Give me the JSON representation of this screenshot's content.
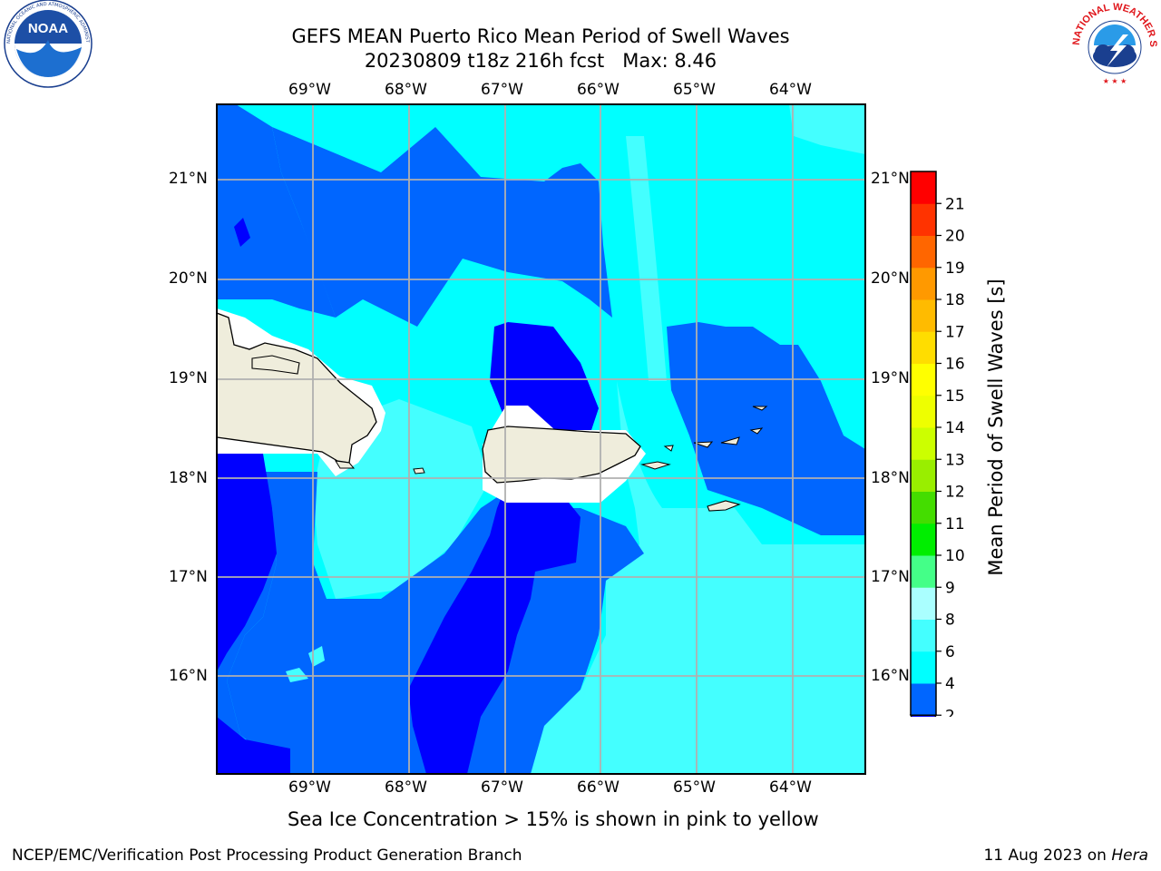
{
  "header": {
    "title_line1": "GEFS MEAN Puerto Rico Mean Period of Swell Waves",
    "title_line2": "20230809 t18z 216h fcst   Max: 8.46"
  },
  "logos": {
    "left_name": "NOAA",
    "left_ring_text": "NATIONAL OCEANIC AND ATMOSPHERIC ADMINISTRATION · U.S. DEPARTMENT OF COMMERCE",
    "right_ring_text": "NATIONAL WEATHER SERVICE"
  },
  "map": {
    "lon_labels": [
      "69°W",
      "68°W",
      "67°W",
      "66°W",
      "65°W",
      "64°W"
    ],
    "lat_labels": [
      "21°N",
      "20°N",
      "19°N",
      "18°N",
      "17°N",
      "16°N"
    ]
  },
  "colorbar": {
    "label": "Mean Period of Swell Waves [s]",
    "ticks": [
      "2",
      "4",
      "6",
      "8",
      "9",
      "10",
      "11",
      "12",
      "13",
      "14",
      "15",
      "16",
      "17",
      "18",
      "19",
      "20",
      "21"
    ],
    "colors": [
      "#0066ff",
      "#00ffff",
      "#44ffff",
      "#aaffff",
      "#44ff88",
      "#00ee00",
      "#44dd00",
      "#99ee00",
      "#ccff00",
      "#eeff00",
      "#ffff00",
      "#ffdd00",
      "#ffbb00",
      "#ff9900",
      "#ff6600",
      "#ff3300",
      "#ff0000"
    ],
    "under_color": "#0000ff"
  },
  "legend_note": "Sea Ice Concentration > 15% is shown in pink to yellow",
  "footer": {
    "left": "NCEP/EMC/Verification Post Processing Product Generation Branch",
    "right_prefix": "11 Aug 2023 on ",
    "right_host": "Hera"
  }
}
